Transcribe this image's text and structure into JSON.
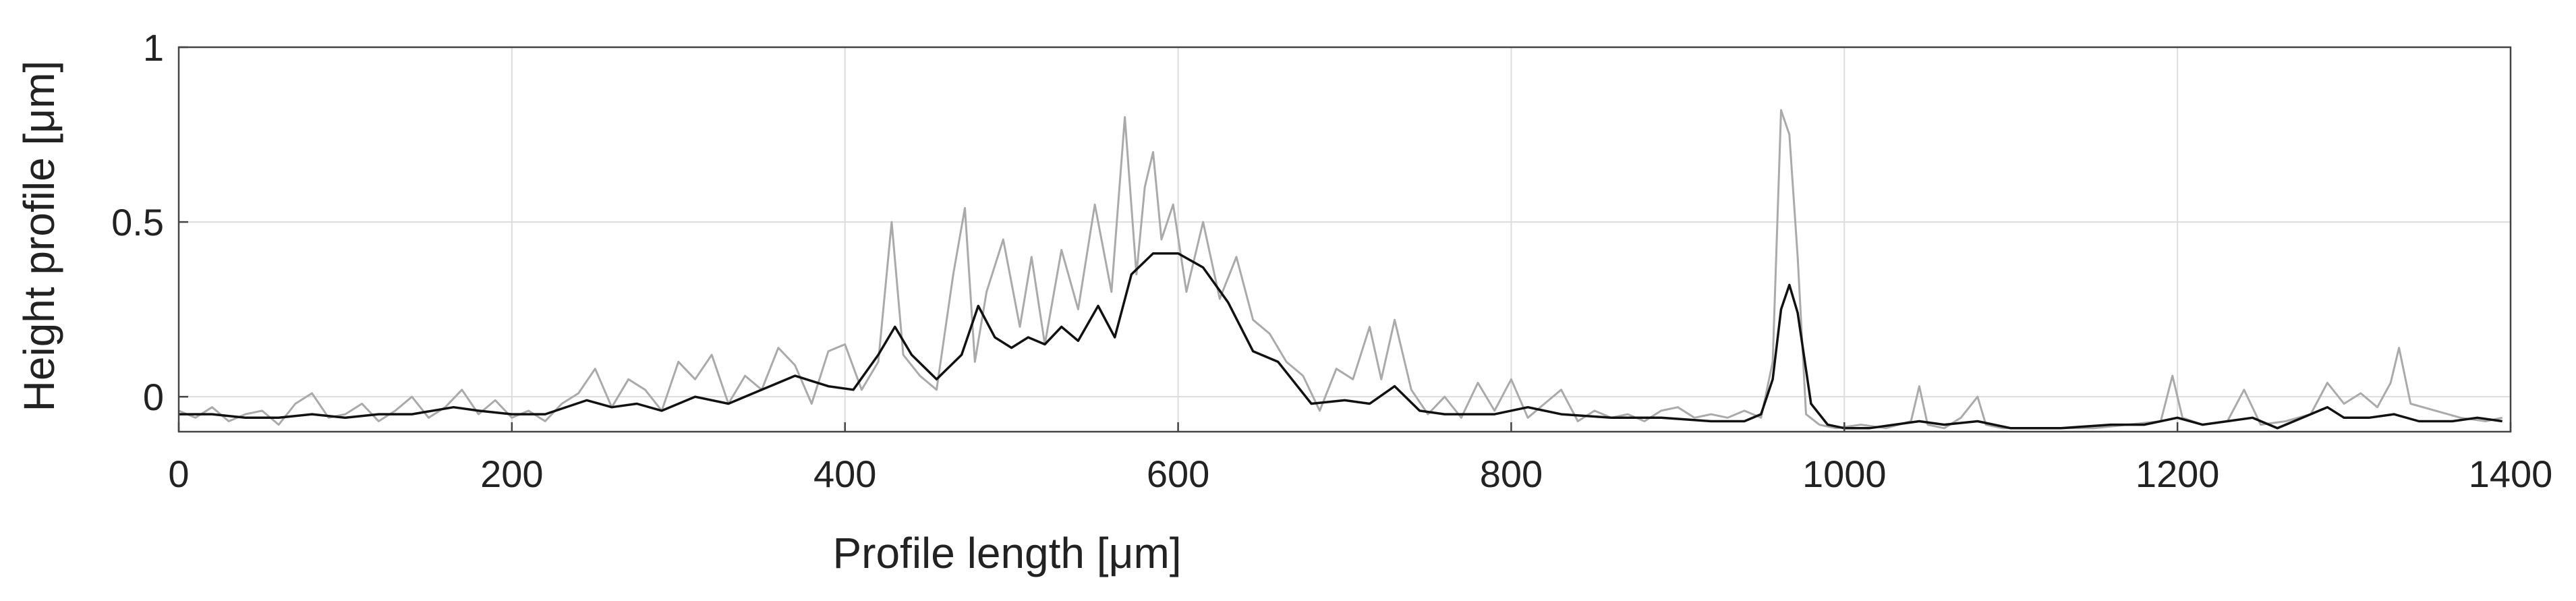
{
  "chart_data": {
    "type": "line",
    "title": "",
    "xlabel": "Profile length [μm]",
    "ylabel": "Height profile [μm]",
    "xlim": [
      0,
      1400
    ],
    "ylim": [
      -0.1,
      1
    ],
    "x_ticks": [
      0,
      200,
      400,
      600,
      800,
      1000,
      1200,
      1400
    ],
    "x_tick_labels": [
      "0",
      "200",
      "400",
      "600",
      "800",
      "1000",
      "1200",
      "1400"
    ],
    "y_ticks": [
      0,
      0.5,
      1
    ],
    "y_tick_labels": [
      "0",
      "0.5",
      "1"
    ],
    "grid": true,
    "legend": "none",
    "colors": {
      "raw": "#aaaaaa",
      "smoothed": "#111111",
      "grid": "#dddddd",
      "axis": "#444444"
    },
    "series": [
      {
        "style": "raw",
        "x": [
          0,
          10,
          20,
          30,
          40,
          50,
          60,
          70,
          80,
          90,
          100,
          110,
          120,
          130,
          140,
          150,
          160,
          170,
          180,
          190,
          200,
          210,
          220,
          230,
          240,
          250,
          260,
          270,
          280,
          290,
          300,
          310,
          320,
          330,
          340,
          350,
          360,
          370,
          380,
          390,
          400,
          410,
          420,
          428,
          435,
          445,
          455,
          465,
          472,
          478,
          485,
          495,
          505,
          512,
          520,
          530,
          540,
          550,
          560,
          568,
          575,
          580,
          585,
          590,
          597,
          605,
          615,
          625,
          635,
          645,
          655,
          665,
          675,
          685,
          695,
          705,
          715,
          722,
          730,
          740,
          750,
          760,
          770,
          780,
          790,
          800,
          810,
          820,
          830,
          840,
          850,
          860,
          870,
          880,
          890,
          900,
          910,
          920,
          930,
          940,
          950,
          957,
          962,
          967,
          972,
          977,
          985,
          995,
          1010,
          1025,
          1040,
          1045,
          1050,
          1060,
          1070,
          1080,
          1085,
          1095,
          1110,
          1130,
          1150,
          1170,
          1190,
          1197,
          1203,
          1215,
          1230,
          1240,
          1250,
          1265,
          1280,
          1290,
          1300,
          1310,
          1320,
          1328,
          1333,
          1340,
          1355,
          1370,
          1385,
          1395
        ],
        "y": [
          -0.04,
          -0.06,
          -0.03,
          -0.07,
          -0.05,
          -0.04,
          -0.08,
          -0.02,
          0.01,
          -0.06,
          -0.05,
          -0.02,
          -0.07,
          -0.04,
          0.0,
          -0.06,
          -0.03,
          0.02,
          -0.05,
          -0.01,
          -0.06,
          -0.04,
          -0.07,
          -0.02,
          0.01,
          0.08,
          -0.03,
          0.05,
          0.02,
          -0.04,
          0.1,
          0.05,
          0.12,
          -0.02,
          0.06,
          0.02,
          0.14,
          0.09,
          -0.02,
          0.13,
          0.15,
          0.02,
          0.1,
          0.5,
          0.12,
          0.06,
          0.02,
          0.35,
          0.54,
          0.1,
          0.3,
          0.45,
          0.2,
          0.4,
          0.15,
          0.42,
          0.25,
          0.55,
          0.3,
          0.8,
          0.35,
          0.6,
          0.7,
          0.45,
          0.55,
          0.3,
          0.5,
          0.28,
          0.4,
          0.22,
          0.18,
          0.1,
          0.06,
          -0.04,
          0.08,
          0.05,
          0.2,
          0.05,
          0.22,
          0.02,
          -0.05,
          0.0,
          -0.06,
          0.04,
          -0.04,
          0.05,
          -0.06,
          -0.02,
          0.02,
          -0.07,
          -0.04,
          -0.06,
          -0.05,
          -0.07,
          -0.04,
          -0.03,
          -0.06,
          -0.05,
          -0.06,
          -0.04,
          -0.06,
          0.1,
          0.82,
          0.75,
          0.4,
          -0.05,
          -0.08,
          -0.09,
          -0.08,
          -0.09,
          -0.07,
          0.03,
          -0.08,
          -0.09,
          -0.06,
          0.0,
          -0.08,
          -0.09,
          -0.09,
          -0.09,
          -0.09,
          -0.08,
          -0.07,
          0.06,
          -0.06,
          -0.08,
          -0.07,
          0.02,
          -0.08,
          -0.07,
          -0.05,
          0.04,
          -0.02,
          0.01,
          -0.03,
          0.04,
          0.14,
          -0.02,
          -0.04,
          -0.06,
          -0.07,
          -0.06
        ]
      },
      {
        "style": "smoothed",
        "x": [
          0,
          20,
          40,
          60,
          80,
          100,
          120,
          140,
          165,
          180,
          200,
          220,
          245,
          260,
          275,
          290,
          310,
          330,
          350,
          370,
          390,
          405,
          420,
          430,
          440,
          455,
          470,
          480,
          490,
          500,
          510,
          520,
          530,
          540,
          552,
          562,
          572,
          585,
          600,
          615,
          630,
          645,
          660,
          680,
          700,
          715,
          730,
          745,
          760,
          790,
          810,
          830,
          860,
          890,
          920,
          940,
          950,
          957,
          962,
          967,
          972,
          980,
          990,
          1000,
          1015,
          1030,
          1045,
          1060,
          1080,
          1100,
          1130,
          1160,
          1180,
          1200,
          1215,
          1230,
          1245,
          1260,
          1280,
          1290,
          1300,
          1315,
          1330,
          1345,
          1365,
          1380,
          1395
        ],
        "y": [
          -0.05,
          -0.05,
          -0.06,
          -0.06,
          -0.05,
          -0.06,
          -0.05,
          -0.05,
          -0.03,
          -0.04,
          -0.05,
          -0.05,
          -0.01,
          -0.03,
          -0.02,
          -0.04,
          0.0,
          -0.02,
          0.02,
          0.06,
          0.03,
          0.02,
          0.12,
          0.2,
          0.12,
          0.05,
          0.12,
          0.26,
          0.17,
          0.14,
          0.17,
          0.15,
          0.2,
          0.16,
          0.26,
          0.17,
          0.35,
          0.41,
          0.41,
          0.37,
          0.27,
          0.13,
          0.1,
          -0.02,
          -0.01,
          -0.02,
          0.03,
          -0.04,
          -0.05,
          -0.05,
          -0.03,
          -0.05,
          -0.06,
          -0.06,
          -0.07,
          -0.07,
          -0.05,
          0.05,
          0.25,
          0.32,
          0.24,
          -0.02,
          -0.08,
          -0.09,
          -0.09,
          -0.08,
          -0.07,
          -0.08,
          -0.07,
          -0.09,
          -0.09,
          -0.08,
          -0.08,
          -0.06,
          -0.08,
          -0.07,
          -0.06,
          -0.09,
          -0.05,
          -0.03,
          -0.06,
          -0.06,
          -0.05,
          -0.07,
          -0.07,
          -0.06,
          -0.07
        ]
      }
    ]
  }
}
